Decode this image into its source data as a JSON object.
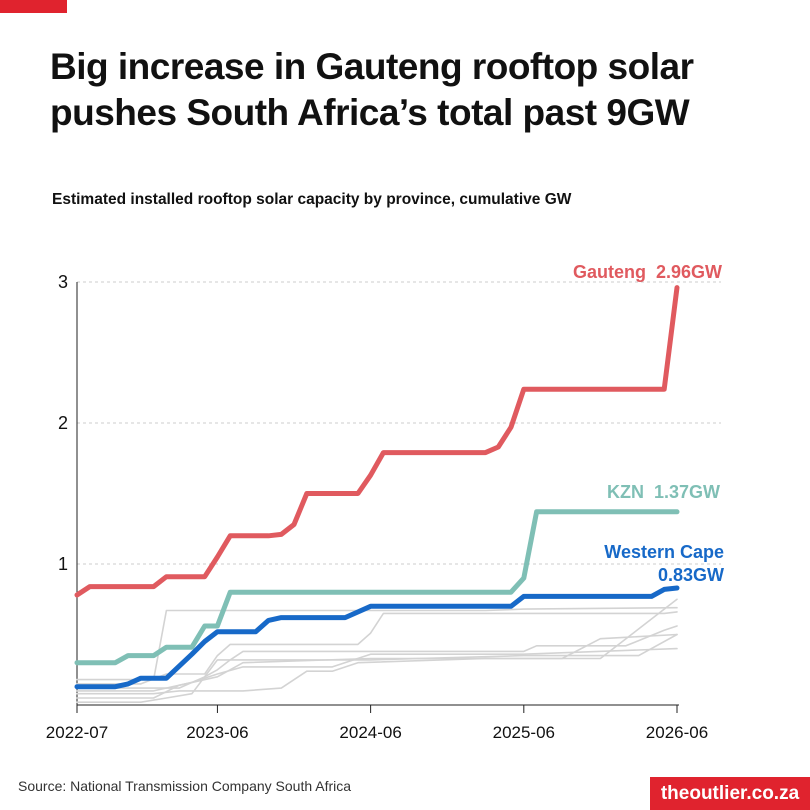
{
  "title": "Big increase in Gauteng rooftop solar pushes South Africa’s total past 9GW",
  "subtitle": "Estimated installed rooftop solar capacity by province, cumulative GW",
  "source": "Source: National Transmission Company South Africa",
  "brand": "theoutlier.co.za",
  "colors": {
    "accent": "#e0232e",
    "gauteng": "#e05a5f",
    "kzn": "#7fbfb5",
    "western_cape": "#1769c8",
    "other": "#d3d3d3",
    "grid": "#cccccc"
  },
  "chart_data": {
    "type": "line",
    "title": "Estimated installed rooftop solar capacity by province, cumulative GW",
    "xlabel": "",
    "ylabel": "",
    "ylim": [
      0,
      3
    ],
    "yticks": [
      "1",
      "2",
      "3"
    ],
    "xlim": [
      "2022-07",
      "2026-06"
    ],
    "xticks": [
      "2022-07",
      "2023-06",
      "2024-06",
      "2025-06",
      "2026-06"
    ],
    "grid": "horizontal dashed",
    "series": [
      {
        "name": "Gauteng",
        "label": "Gauteng  2.96GW",
        "color": "#e05a5f",
        "emphasis": true,
        "points": [
          [
            "2022-07",
            0.78
          ],
          [
            "2022-08",
            0.84
          ],
          [
            "2022-10",
            0.84
          ],
          [
            "2022-11",
            0.84
          ],
          [
            "2023-01",
            0.84
          ],
          [
            "2023-02",
            0.91
          ],
          [
            "2023-04",
            0.91
          ],
          [
            "2023-05",
            0.91
          ],
          [
            "2023-06",
            1.05
          ],
          [
            "2023-07",
            1.2
          ],
          [
            "2023-09",
            1.2
          ],
          [
            "2023-10",
            1.2
          ],
          [
            "2023-11",
            1.21
          ],
          [
            "2023-12",
            1.28
          ],
          [
            "2024-01",
            1.5
          ],
          [
            "2024-02",
            1.5
          ],
          [
            "2024-05",
            1.5
          ],
          [
            "2024-06",
            1.63
          ],
          [
            "2024-07",
            1.79
          ],
          [
            "2024-09",
            1.79
          ],
          [
            "2025-03",
            1.79
          ],
          [
            "2025-04",
            1.83
          ],
          [
            "2025-05",
            1.97
          ],
          [
            "2025-06",
            2.24
          ],
          [
            "2026-05",
            2.24
          ],
          [
            "2026-06",
            2.96
          ]
        ]
      },
      {
        "name": "KZN",
        "label": "KZN  1.37GW",
        "color": "#7fbfb5",
        "emphasis": true,
        "points": [
          [
            "2022-07",
            0.3
          ],
          [
            "2022-10",
            0.3
          ],
          [
            "2022-11",
            0.35
          ],
          [
            "2023-01",
            0.35
          ],
          [
            "2023-02",
            0.41
          ],
          [
            "2023-04",
            0.41
          ],
          [
            "2023-05",
            0.56
          ],
          [
            "2023-06",
            0.56
          ],
          [
            "2023-07",
            0.8
          ],
          [
            "2025-05",
            0.8
          ],
          [
            "2025-06",
            0.9
          ],
          [
            "2025-07",
            1.37
          ],
          [
            "2026-06",
            1.37
          ]
        ]
      },
      {
        "name": "Western Cape",
        "label_lines": [
          "Western Cape",
          "0.83GW"
        ],
        "color": "#1769c8",
        "emphasis": true,
        "points": [
          [
            "2022-07",
            0.13
          ],
          [
            "2022-10",
            0.13
          ],
          [
            "2022-11",
            0.15
          ],
          [
            "2022-12",
            0.19
          ],
          [
            "2023-02",
            0.19
          ],
          [
            "2023-04",
            0.36
          ],
          [
            "2023-05",
            0.45
          ],
          [
            "2023-06",
            0.52
          ],
          [
            "2023-09",
            0.52
          ],
          [
            "2023-10",
            0.6
          ],
          [
            "2023-11",
            0.62
          ],
          [
            "2024-04",
            0.62
          ],
          [
            "2024-06",
            0.7
          ],
          [
            "2025-05",
            0.7
          ],
          [
            "2025-06",
            0.77
          ],
          [
            "2026-04",
            0.77
          ],
          [
            "2026-05",
            0.82
          ],
          [
            "2026-06",
            0.83
          ]
        ]
      },
      {
        "name": "",
        "color": "#d3d3d3",
        "emphasis": false,
        "points": [
          [
            "2022-07",
            0.18
          ],
          [
            "2023-01",
            0.18
          ],
          [
            "2023-02",
            0.67
          ],
          [
            "2024-06",
            0.67
          ],
          [
            "2025-03",
            0.67
          ],
          [
            "2025-06",
            0.68
          ],
          [
            "2026-06",
            0.69
          ]
        ]
      },
      {
        "name": "",
        "color": "#d3d3d3",
        "emphasis": false,
        "points": [
          [
            "2022-07",
            0.15
          ],
          [
            "2022-12",
            0.15
          ],
          [
            "2023-02",
            0.22
          ],
          [
            "2023-05",
            0.22
          ],
          [
            "2023-06",
            0.35
          ],
          [
            "2023-07",
            0.43
          ],
          [
            "2024-05",
            0.43
          ],
          [
            "2024-06",
            0.51
          ],
          [
            "2024-07",
            0.65
          ],
          [
            "2026-05",
            0.65
          ],
          [
            "2026-06",
            0.66
          ]
        ]
      },
      {
        "name": "",
        "color": "#d3d3d3",
        "emphasis": false,
        "points": [
          [
            "2022-07",
            0.12
          ],
          [
            "2023-03",
            0.12
          ],
          [
            "2023-05",
            0.2
          ],
          [
            "2023-06",
            0.25
          ],
          [
            "2023-07",
            0.32
          ],
          [
            "2023-08",
            0.38
          ],
          [
            "2025-06",
            0.38
          ],
          [
            "2025-07",
            0.42
          ],
          [
            "2026-02",
            0.42
          ],
          [
            "2026-05",
            0.53
          ],
          [
            "2026-06",
            0.56
          ]
        ]
      },
      {
        "name": "",
        "color": "#d3d3d3",
        "emphasis": false,
        "points": [
          [
            "2022-07",
            0.05
          ],
          [
            "2023-01",
            0.05
          ],
          [
            "2023-03",
            0.14
          ],
          [
            "2023-06",
            0.2
          ],
          [
            "2023-08",
            0.3
          ],
          [
            "2024-06",
            0.33
          ],
          [
            "2025-09",
            0.33
          ],
          [
            "2025-12",
            0.47
          ],
          [
            "2026-02",
            0.48
          ],
          [
            "2026-06",
            0.5
          ]
        ]
      },
      {
        "name": "",
        "color": "#d3d3d3",
        "emphasis": false,
        "points": [
          [
            "2022-07",
            0.08
          ],
          [
            "2023-01",
            0.08
          ],
          [
            "2023-03",
            0.1
          ],
          [
            "2023-08",
            0.1
          ],
          [
            "2023-11",
            0.12
          ],
          [
            "2024-01",
            0.24
          ],
          [
            "2024-03",
            0.24
          ],
          [
            "2024-05",
            0.3
          ],
          [
            "2025-03",
            0.33
          ],
          [
            "2025-12",
            0.33
          ],
          [
            "2026-06",
            0.75
          ]
        ]
      },
      {
        "name": "",
        "color": "#d3d3d3",
        "emphasis": false,
        "points": [
          [
            "2022-07",
            0.02
          ],
          [
            "2022-12",
            0.02
          ],
          [
            "2023-02",
            0.05
          ],
          [
            "2023-04",
            0.08
          ],
          [
            "2023-06",
            0.32
          ],
          [
            "2024-06",
            0.32
          ],
          [
            "2025-06",
            0.35
          ],
          [
            "2026-03",
            0.35
          ],
          [
            "2026-06",
            0.5
          ]
        ]
      },
      {
        "name": "",
        "color": "#d3d3d3",
        "emphasis": false,
        "points": [
          [
            "2022-07",
            0.1
          ],
          [
            "2023-01",
            0.1
          ],
          [
            "2023-04",
            0.16
          ],
          [
            "2023-06",
            0.22
          ],
          [
            "2023-08",
            0.27
          ],
          [
            "2024-03",
            0.27
          ],
          [
            "2024-06",
            0.36
          ],
          [
            "2025-06",
            0.36
          ],
          [
            "2026-06",
            0.4
          ]
        ]
      }
    ]
  }
}
